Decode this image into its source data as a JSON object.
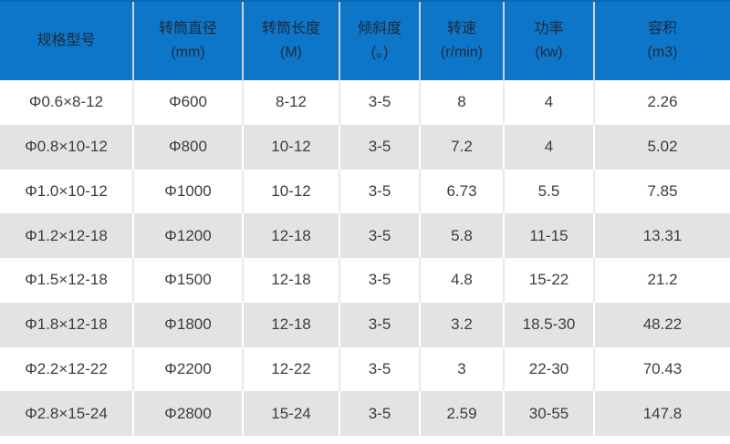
{
  "colors": {
    "header_bg": "#0d76c9",
    "header_top_border": "#0a68b4",
    "header_text": "#1c2b3a",
    "row_alt_bg": "#e3e3e3",
    "body_text": "#3d3d3d"
  },
  "chart_data": {
    "type": "table",
    "columns": [
      {
        "line1": "规格型号",
        "line2": ""
      },
      {
        "line1": "转筒直径",
        "line2": "(mm)"
      },
      {
        "line1": "转筒长度",
        "line2": "(M)"
      },
      {
        "line1": "倾斜度",
        "line2": "(。)"
      },
      {
        "line1": "转速",
        "line2": "(r/min)"
      },
      {
        "line1": "功率",
        "line2": "(kw)"
      },
      {
        "line1": "容积",
        "line2": "(m3)"
      }
    ],
    "rows": [
      [
        "Φ0.6×8-12",
        "Φ600",
        "8-12",
        "3-5",
        "8",
        "4",
        "2.26"
      ],
      [
        "Φ0.8×10-12",
        "Φ800",
        "10-12",
        "3-5",
        "7.2",
        "4",
        "5.02"
      ],
      [
        "Φ1.0×10-12",
        "Φ1000",
        "10-12",
        "3-5",
        "6.73",
        "5.5",
        "7.85"
      ],
      [
        "Φ1.2×12-18",
        "Φ1200",
        "12-18",
        "3-5",
        "5.8",
        "11-15",
        "13.31"
      ],
      [
        "Φ1.5×12-18",
        "Φ1500",
        "12-18",
        "3-5",
        "4.8",
        "15-22",
        "21.2"
      ],
      [
        "Φ1.8×12-18",
        "Φ1800",
        "12-18",
        "3-5",
        "3.2",
        "18.5-30",
        "48.22"
      ],
      [
        "Φ2.2×12-22",
        "Φ2200",
        "12-22",
        "3-5",
        "3",
        "22-30",
        "70.43"
      ],
      [
        "Φ2.8×15-24",
        "Φ2800",
        "15-24",
        "3-5",
        "2.59",
        "30-55",
        "147.8"
      ]
    ]
  }
}
